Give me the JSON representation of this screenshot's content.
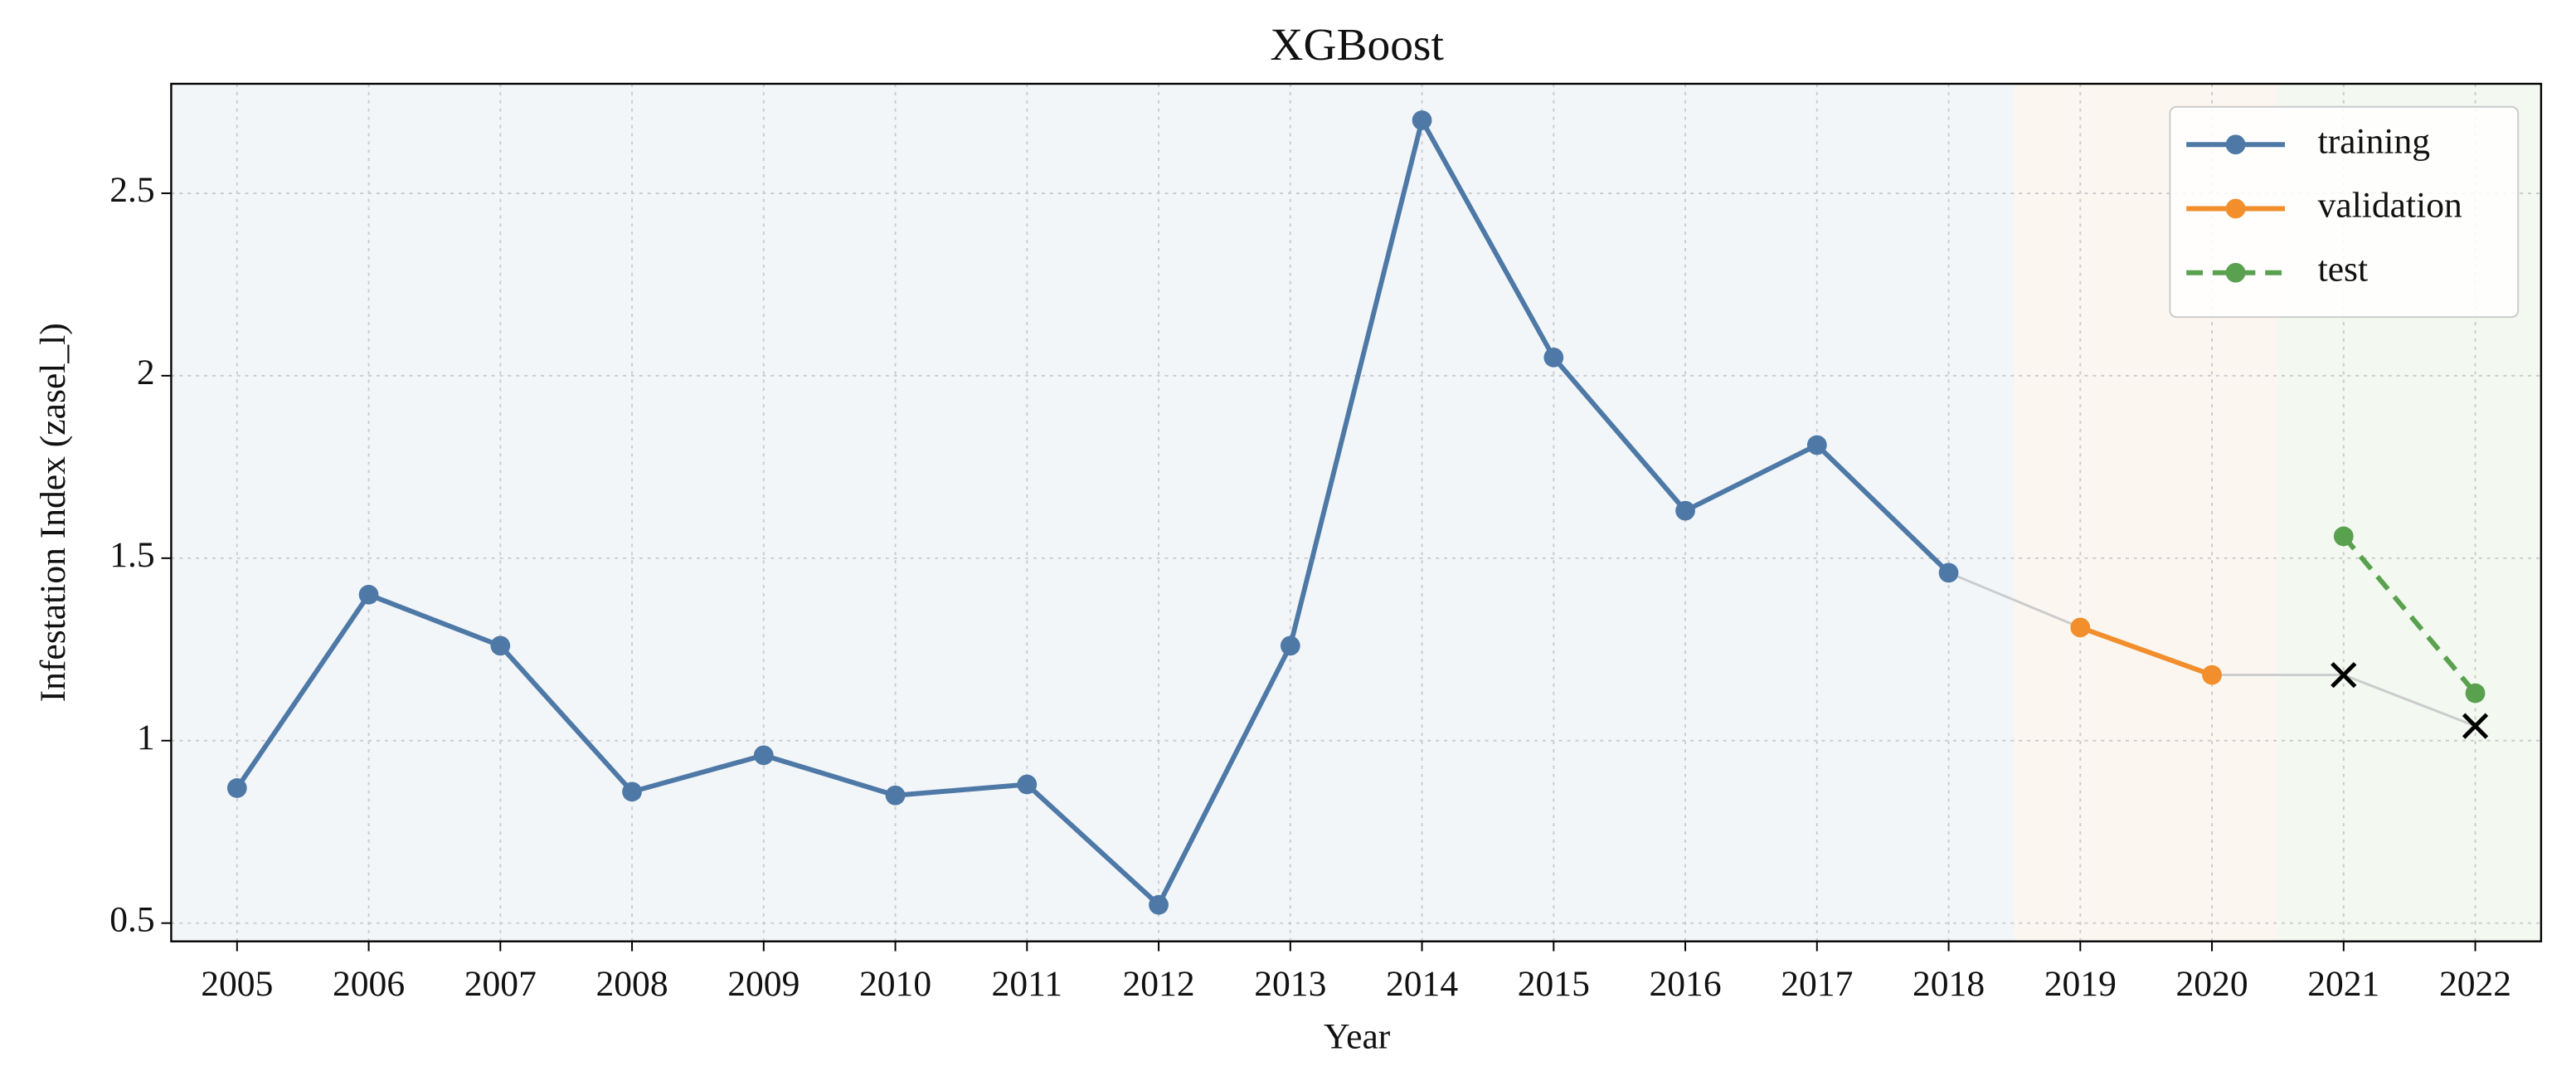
{
  "chart_data": {
    "type": "line",
    "title": "XGBoost",
    "x_label": "Year",
    "y_label": "Infestation Index (zasel_l)",
    "x": [
      2005,
      2006,
      2007,
      2008,
      2009,
      2010,
      2011,
      2012,
      2013,
      2014,
      2015,
      2016,
      2017,
      2018,
      2019,
      2020,
      2021,
      2022
    ],
    "series": [
      {
        "name": "training",
        "color": "#4e79a7",
        "dashed": false,
        "values": [
          0.87,
          1.4,
          1.26,
          0.86,
          0.96,
          0.85,
          0.88,
          0.55,
          1.26,
          2.7,
          2.05,
          1.63,
          1.81,
          1.46,
          null,
          null,
          null,
          null
        ]
      },
      {
        "name": "validation",
        "color": "#f28e2b",
        "dashed": false,
        "values": [
          null,
          null,
          null,
          null,
          null,
          null,
          null,
          null,
          null,
          null,
          null,
          null,
          null,
          null,
          1.31,
          1.18,
          null,
          null
        ]
      },
      {
        "name": "test",
        "color": "#59a14f",
        "dashed": true,
        "values": [
          null,
          null,
          null,
          null,
          null,
          null,
          null,
          null,
          null,
          null,
          null,
          null,
          null,
          null,
          null,
          null,
          1.56,
          1.13
        ]
      }
    ],
    "connector": {
      "color": "#cccccc",
      "x": [
        2018,
        2019,
        2020,
        2021,
        2022
      ],
      "values": [
        1.46,
        1.31,
        1.18,
        1.18,
        1.04
      ]
    },
    "markers": {
      "color": "#000000",
      "x": [
        2021,
        2022
      ],
      "values": [
        1.18,
        1.04
      ]
    },
    "spans": [
      {
        "start": 2004.5,
        "end": 2018.5,
        "color": "#f3f6f9"
      },
      {
        "start": 2018.5,
        "end": 2020.5,
        "color": "#fcf6f0"
      },
      {
        "start": 2020.5,
        "end": 2022.5,
        "color": "#f3f8f1"
      }
    ],
    "xlim": [
      2004.5,
      2022.5
    ],
    "ylim": [
      0.45,
      2.8
    ],
    "xticks": [
      2005,
      2006,
      2007,
      2008,
      2009,
      2010,
      2011,
      2012,
      2013,
      2014,
      2015,
      2016,
      2017,
      2018,
      2019,
      2020,
      2021,
      2022
    ],
    "yticks": [
      0.5,
      1.0,
      1.5,
      2.0,
      2.5
    ],
    "grid": true,
    "legend": "upper-right"
  }
}
